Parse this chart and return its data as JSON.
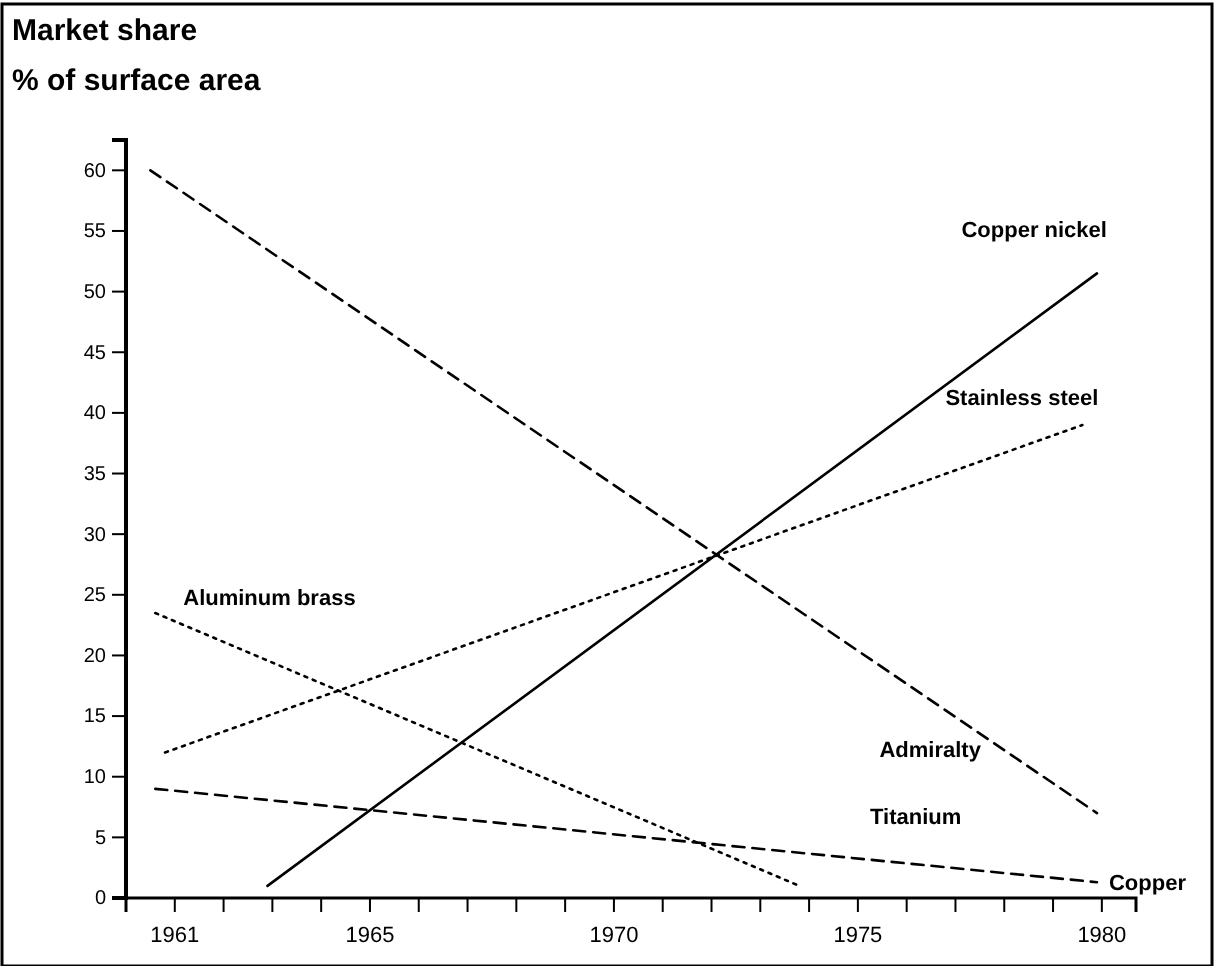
{
  "chart_data": {
    "type": "line",
    "title": "Market share",
    "subtitle": "% of surface area",
    "xlim": [
      1960,
      1980.7
    ],
    "ylim": [
      0,
      62.5
    ],
    "xticks": [
      1961,
      {
        "value": 1962,
        "label": null
      },
      {
        "value": 1963,
        "label": null
      },
      {
        "value": 1964,
        "label": null
      },
      1965,
      {
        "value": 1966,
        "label": null
      },
      {
        "value": 1967,
        "label": null
      },
      {
        "value": 1968,
        "label": null
      },
      {
        "value": 1969,
        "label": null
      },
      1970,
      {
        "value": 1971,
        "label": null
      },
      {
        "value": 1972,
        "label": null
      },
      {
        "value": 1973,
        "label": null
      },
      {
        "value": 1974,
        "label": null
      },
      1975,
      {
        "value": 1976,
        "label": null
      },
      {
        "value": 1977,
        "label": null
      },
      {
        "value": 1978,
        "label": null
      },
      {
        "value": 1979,
        "label": null
      },
      1980
    ],
    "yticks": [
      0,
      5,
      10,
      15,
      20,
      25,
      30,
      35,
      40,
      45,
      50,
      55,
      60
    ],
    "grid": false,
    "legend": false,
    "marker": "none",
    "series": [
      {
        "name": "Admiralty",
        "color": "#000000",
        "line_style": "dashed",
        "x": [
          1960.5,
          1979.9
        ],
        "values": [
          60,
          7
        ]
      },
      {
        "name": "Copper nickel",
        "color": "#000000",
        "line_style": "solid",
        "x": [
          1962.9,
          1979.9
        ],
        "values": [
          1,
          51.5
        ]
      },
      {
        "name": "Stainless steel",
        "color": "#000000",
        "line_style": "dotted",
        "x": [
          1960.8,
          1979.6
        ],
        "values": [
          12,
          39
        ]
      },
      {
        "name": "Aluminum brass",
        "color": "#000000",
        "line_style": "dotted",
        "x": [
          1960.6,
          1973.8
        ],
        "values": [
          23.5,
          1
        ]
      },
      {
        "name": "Copper",
        "color": "#000000",
        "line_style": "dashed",
        "x": [
          1960.6,
          1979.9
        ],
        "values": [
          9,
          1.3
        ]
      }
    ],
    "annotations": [
      "Titanium"
    ]
  }
}
